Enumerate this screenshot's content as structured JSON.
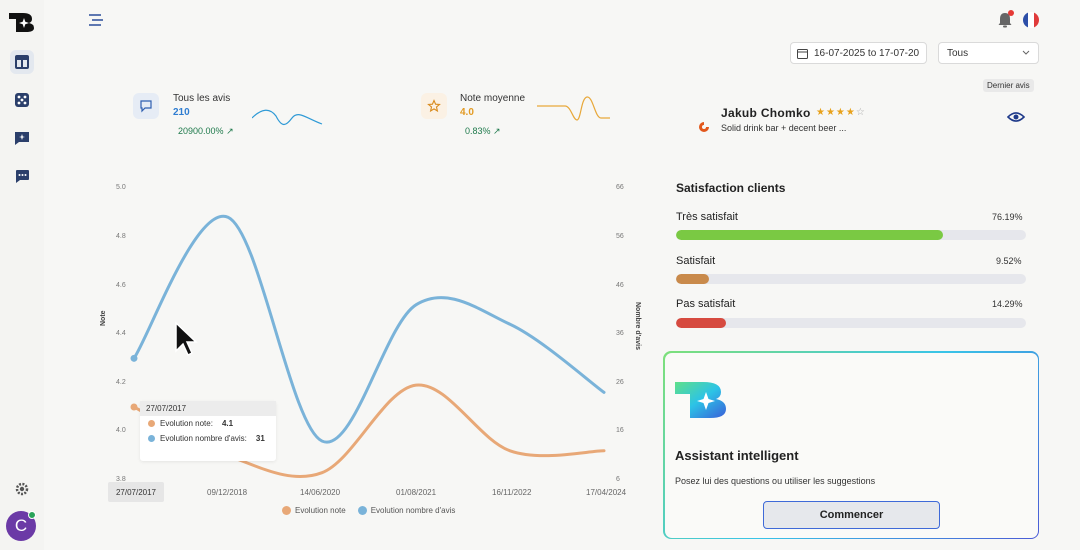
{
  "topbar": {
    "date_range": "16-07-2025 to 17-07-20",
    "filter_value": "Tous"
  },
  "kpis": [
    {
      "title": "Tous les avis",
      "value": "210",
      "trend": "20900.00%",
      "color": "#2f7dd1"
    },
    {
      "title": "Note moyenne",
      "value": "4.0",
      "trend": "0.83%",
      "color": "#e29a22"
    }
  ],
  "latest_review": {
    "badge": "Dernier avis",
    "name": "Jakub Chomko",
    "stars_filled": "★★★★",
    "stars_empty": "☆",
    "rating": 4,
    "text": "Solid drink bar + decent beer ..."
  },
  "satisfaction": {
    "title": "Satisfaction clients",
    "items": [
      {
        "label": "Très satisfait",
        "pct": "76.19%",
        "value": 76.19,
        "color": "#7ac943"
      },
      {
        "label": "Satisfait",
        "pct": "9.52%",
        "value": 9.52,
        "color": "#c98a4b"
      },
      {
        "label": "Pas satisfait",
        "pct": "14.29%",
        "value": 14.29,
        "color": "#d64a3f"
      }
    ]
  },
  "assistant": {
    "title": "Assistant intelligent",
    "subtitle": "Posez lui des questions ou utiliser les suggestions",
    "button": "Commencer"
  },
  "tooltip": {
    "date": "27/07/2017",
    "note_label": "Evolution note:",
    "note_value": "4.1",
    "count_label": "Evolution nombre d'avis:",
    "count_value": "31"
  },
  "chart_data": {
    "type": "line",
    "ylabel_left": "Note",
    "ylabel_right": "Nombre d'avis",
    "left_ticks": [
      "5.0",
      "4.8",
      "4.6",
      "4.4",
      "4.2",
      "4.0",
      "3.8"
    ],
    "right_ticks": [
      "66",
      "56",
      "46",
      "36",
      "26",
      "16",
      "6"
    ],
    "x_ticks": [
      "27/07/2017",
      "09/12/2018",
      "14/06/2020",
      "01/08/2021",
      "16/11/2022",
      "17/04/2024"
    ],
    "ylim_left": [
      3.8,
      5.0
    ],
    "ylim_right": [
      6,
      66
    ],
    "series": [
      {
        "name": "Evolution note",
        "axis": "left",
        "color": "#e8a877",
        "x": [
          "27/07/2017",
          "09/12/2018",
          "14/06/2020",
          "01/08/2021",
          "16/11/2022",
          "17/04/2024"
        ],
        "values": [
          4.1,
          3.9,
          3.83,
          4.19,
          3.92,
          3.92
        ]
      },
      {
        "name": "Evolution nombre d'avis",
        "axis": "right",
        "color": "#7ab3d9",
        "x": [
          "27/07/2017",
          "09/12/2018",
          "14/06/2020",
          "01/08/2021",
          "16/11/2022",
          "17/04/2024"
        ],
        "values": [
          31,
          60,
          14,
          42,
          38,
          24
        ]
      }
    ],
    "legend": [
      "Evolution note",
      "Evolution nombre d'avis"
    ],
    "legend_position": "bottom"
  }
}
